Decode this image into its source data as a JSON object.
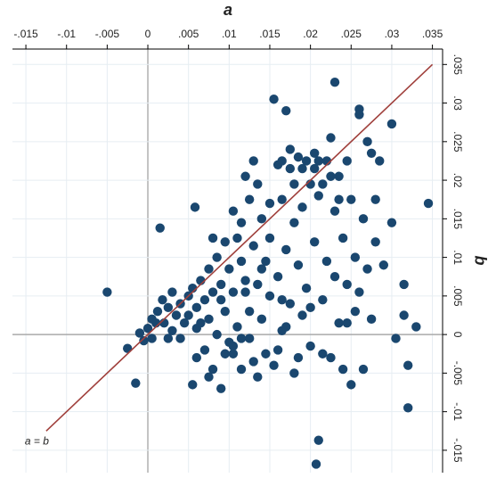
{
  "chart_data": {
    "type": "scatter",
    "x_label": "a",
    "y_label": "b",
    "xlim": [
      -0.01665,
      0.03625
    ],
    "ylim": [
      -0.0179,
      0.037
    ],
    "xticks": [
      {
        "value": -0.015,
        "label": "-.015"
      },
      {
        "value": -0.01,
        "label": "-.01"
      },
      {
        "value": -0.005,
        "label": "-.005"
      },
      0,
      {
        "value": 0.005,
        "label": ".005"
      },
      {
        "value": 0.01,
        "label": ".01"
      },
      {
        "value": 0.015,
        "label": ".015"
      },
      {
        "value": 0.02,
        "label": ".02"
      },
      {
        "value": 0.025,
        "label": ".025"
      },
      {
        "value": 0.03,
        "label": ".03"
      },
      {
        "value": 0.035,
        "label": ".035"
      }
    ],
    "yticks": [
      {
        "value": -0.015,
        "label": "-.015"
      },
      {
        "value": -0.01,
        "label": "-.01"
      },
      {
        "value": -0.005,
        "label": "-.005"
      },
      0,
      {
        "value": 0.005,
        "label": ".005"
      },
      {
        "value": 0.01,
        "label": ".01"
      },
      {
        "value": 0.015,
        "label": ".015"
      },
      {
        "value": 0.02,
        "label": ".02"
      },
      {
        "value": 0.025,
        "label": ".025"
      },
      {
        "value": 0.03,
        "label": ".03"
      },
      {
        "value": 0.035,
        "label": ".035"
      }
    ],
    "grid": true,
    "color": "#1a476f",
    "x": [
      -0.005,
      -0.0015,
      -0.0025,
      -0.001,
      0,
      0.0005,
      0.001,
      0.0012,
      0.0018,
      0.002,
      0.0025,
      0.003,
      0.003,
      0.0035,
      0.004,
      0.004,
      0.0045,
      0.005,
      0.005,
      0.0055,
      0.0055,
      0.006,
      0.006,
      0.0065,
      0.007,
      0.007,
      0.0075,
      0.0075,
      0.008,
      0.008,
      0.0085,
      0.0085,
      0.009,
      0.009,
      0.0095,
      0.0095,
      0.01,
      0.01,
      0.0105,
      0.0105,
      0.011,
      0.011,
      0.0115,
      0.0115,
      0.012,
      0.012,
      0.0125,
      0.0125,
      0.013,
      0.013,
      0.0135,
      0.0135,
      0.014,
      0.014,
      0.0145,
      0.0145,
      0.015,
      0.015,
      0.0155,
      0.0155,
      0.016,
      0.016,
      0.0165,
      0.0165,
      0.017,
      0.017,
      0.0175,
      0.0175,
      0.018,
      0.018,
      0.0185,
      0.0185,
      0.019,
      0.019,
      0.0195,
      0.0195,
      0.02,
      0.02,
      0.0205,
      0.0205,
      0.021,
      0.0207,
      0.021,
      0.0215,
      0.022,
      0.022,
      0.0225,
      0.0225,
      0.023,
      0.023,
      0.0235,
      0.0235,
      0.024,
      0.024,
      0.0245,
      0.0245,
      0.025,
      0.025,
      0.0255,
      0.0255,
      0.026,
      0.026,
      0.026,
      0.0265,
      0.0265,
      0.027,
      0.027,
      0.0275,
      0.0275,
      0.028,
      0.028,
      0.0285,
      0.029,
      0.03,
      0.03,
      0.0305,
      0.0315,
      0.0315,
      0.032,
      0.032,
      0.033,
      0.0345,
      0.0015,
      0.0058,
      0.006,
      0.0065,
      0.008,
      0.0105,
      0.0115,
      0.0125,
      0.0135,
      0.015,
      0.0165,
      0.0175,
      0.018,
      0.019,
      0.0205,
      0.021,
      0.0215,
      0.0225,
      0.0235,
      0.0095,
      0.0105,
      0.0115,
      0.013,
      0.016,
      0.017,
      0.0185,
      0.02,
      0.0215,
      0.023,
      0.0245,
      0.0005,
      -0.0005,
      0.0025,
      0.0075,
      0.009,
      0.012,
      0.014,
      0.0165
    ],
    "y": [
      0.0055,
      -0.0063,
      -0.0018,
      0.0002,
      0.0008,
      -0.0005,
      0.0015,
      0.003,
      0.0045,
      0.0015,
      0.0035,
      0.0005,
      0.0055,
      0.0025,
      0.004,
      -0.0005,
      0.0015,
      0.005,
      0.0025,
      0.006,
      -0.0065,
      0.0035,
      0.0008,
      0.007,
      0.0045,
      -0.002,
      0.0085,
      0.002,
      0.0055,
      -0.0045,
      0.01,
      0,
      0.0065,
      -0.007,
      0.012,
      0.003,
      0.0085,
      -0.001,
      0.0055,
      -0.0025,
      0.0125,
      0.001,
      0.0095,
      -0.0045,
      0.007,
      0.0205,
      0.003,
      -0.0005,
      0.0115,
      0.0225,
      0.0065,
      -0.0055,
      0.015,
      0.002,
      0.0095,
      -0.0025,
      0.0125,
      0.005,
      0.0305,
      -0.004,
      0.022,
      0.0075,
      0.0175,
      0.0005,
      0.029,
      0.011,
      0.024,
      0.004,
      0.0195,
      -0.005,
      0.023,
      0.009,
      0.0165,
      0.0025,
      0.0225,
      0.006,
      0.0195,
      -0.0015,
      0.0235,
      0.012,
      -0.0137,
      -0.0168,
      0.018,
      0.0045,
      0.0225,
      0.0095,
      0.0255,
      -0.003,
      0.0327,
      0.016,
      0.0015,
      0.0205,
      0.0125,
      -0.0045,
      0.0225,
      0.0065,
      0.0175,
      -0.0065,
      0.01,
      0.003,
      0.0292,
      0.0285,
      0.0055,
      0.015,
      -0.0045,
      0.025,
      0.0085,
      0.0235,
      0.002,
      0.0175,
      0.012,
      0.0225,
      0.009,
      0.0273,
      0.0145,
      -0.0005,
      0.0065,
      0.0025,
      -0.004,
      -0.0095,
      0.001,
      0.017,
      0.0138,
      0.0165,
      -0.003,
      0.0015,
      0.0125,
      0.016,
      0.0145,
      0.0175,
      0.0195,
      0.017,
      0.0225,
      0.0215,
      0.0145,
      0.0215,
      0.0215,
      0.0225,
      0.0195,
      0.0205,
      0.0175,
      -0.0025,
      -0.0015,
      -0.0005,
      -0.0035,
      -0.002,
      0.001,
      -0.003,
      0.0035,
      -0.0025,
      0.0075,
      0.0015,
      0.002,
      -0.0008,
      -0.0005,
      -0.0055,
      0.0045,
      0.0055,
      0.0085,
      0.0045
    ],
    "reference_line": {
      "label": "a = b",
      "color": "#a0403c",
      "x": [
        -0.0125,
        0.035
      ],
      "y": [
        -0.0125,
        0.035
      ]
    }
  }
}
